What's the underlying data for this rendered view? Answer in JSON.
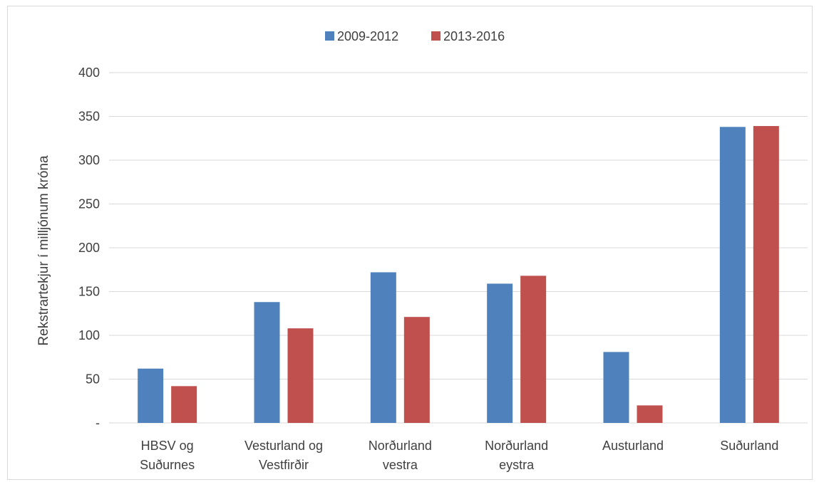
{
  "chart_data": {
    "type": "bar",
    "title": "",
    "xlabel": "",
    "ylabel": "Rekstrartekjur í milljónum króna",
    "ylim": [
      0,
      400
    ],
    "yticks": [
      0,
      50,
      100,
      150,
      200,
      250,
      300,
      350,
      400
    ],
    "ytick_labels": [
      "-",
      "50",
      "100",
      "150",
      "200",
      "250",
      "300",
      "350",
      "400"
    ],
    "grid": true,
    "legend_position": "top",
    "categories": [
      [
        "HBSV og",
        "Suðurnes"
      ],
      [
        "Vesturland og",
        "Vestfirðir"
      ],
      [
        "Norðurland",
        "vestra"
      ],
      [
        "Norðurland",
        "eystra"
      ],
      [
        "Austurland"
      ],
      [
        "Suðurland"
      ]
    ],
    "series": [
      {
        "name": "2009-2012",
        "color": "#4f81bd",
        "values": [
          62,
          138,
          172,
          159,
          81,
          338
        ]
      },
      {
        "name": "2013-2016",
        "color": "#c0504d",
        "values": [
          42,
          108,
          121,
          168,
          20,
          339
        ]
      }
    ]
  }
}
